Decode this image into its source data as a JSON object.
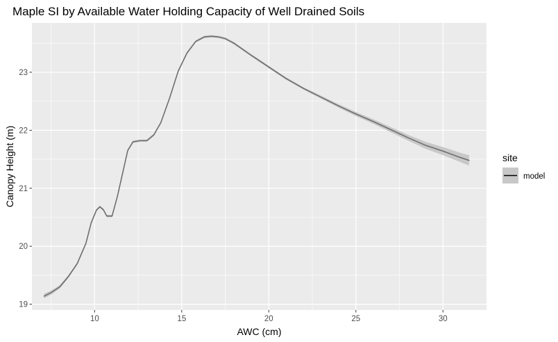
{
  "chart_data": {
    "type": "line",
    "title": "Maple SI by Available Water Holding Capacity of Well Drained Soils",
    "xlabel": "AWC (cm)",
    "ylabel": "Canopy Height (m)",
    "xlim": [
      6.4,
      32.5
    ],
    "ylim": [
      18.9,
      23.85
    ],
    "xticks": [
      10,
      15,
      20,
      25,
      30
    ],
    "yticks": [
      19,
      20,
      21,
      22,
      23
    ],
    "grid": true,
    "legend": {
      "title": "site",
      "position": "right",
      "entries": [
        "model"
      ]
    },
    "colors": {
      "panel": "#ebebeb",
      "grid": "#ffffff",
      "line": "#6e6e6e",
      "ribbon": "#c8c8c8"
    },
    "series": [
      {
        "name": "model",
        "x": [
          7.1,
          7.5,
          8.0,
          8.5,
          9.0,
          9.5,
          9.8,
          10.1,
          10.3,
          10.5,
          10.7,
          11.0,
          11.3,
          11.6,
          11.9,
          12.2,
          12.6,
          13.0,
          13.4,
          13.8,
          14.3,
          14.8,
          15.3,
          15.8,
          16.3,
          16.7,
          17.1,
          17.5,
          18.0,
          19.0,
          20.0,
          21.0,
          22.0,
          23.0,
          24.0,
          25.0,
          26.0,
          27.0,
          28.0,
          29.0,
          30.0,
          31.0,
          31.5
        ],
        "y": [
          19.14,
          19.2,
          19.3,
          19.48,
          19.7,
          20.05,
          20.4,
          20.62,
          20.68,
          20.63,
          20.52,
          20.52,
          20.85,
          21.25,
          21.65,
          21.8,
          21.82,
          21.82,
          21.92,
          22.13,
          22.55,
          23.02,
          23.33,
          23.53,
          23.61,
          23.62,
          23.61,
          23.58,
          23.5,
          23.29,
          23.09,
          22.89,
          22.72,
          22.57,
          22.42,
          22.28,
          22.15,
          22.01,
          21.87,
          21.74,
          21.64,
          21.53,
          21.48
        ],
        "ribbon_halfwidth": [
          0.04,
          0.035,
          0.03,
          0.025,
          0.02,
          0.02,
          0.02,
          0.02,
          0.02,
          0.02,
          0.02,
          0.02,
          0.02,
          0.02,
          0.02,
          0.02,
          0.02,
          0.02,
          0.02,
          0.02,
          0.02,
          0.02,
          0.02,
          0.02,
          0.02,
          0.02,
          0.02,
          0.02,
          0.02,
          0.02,
          0.02,
          0.02,
          0.02,
          0.025,
          0.03,
          0.035,
          0.04,
          0.045,
          0.05,
          0.06,
          0.07,
          0.08,
          0.09
        ]
      }
    ]
  }
}
